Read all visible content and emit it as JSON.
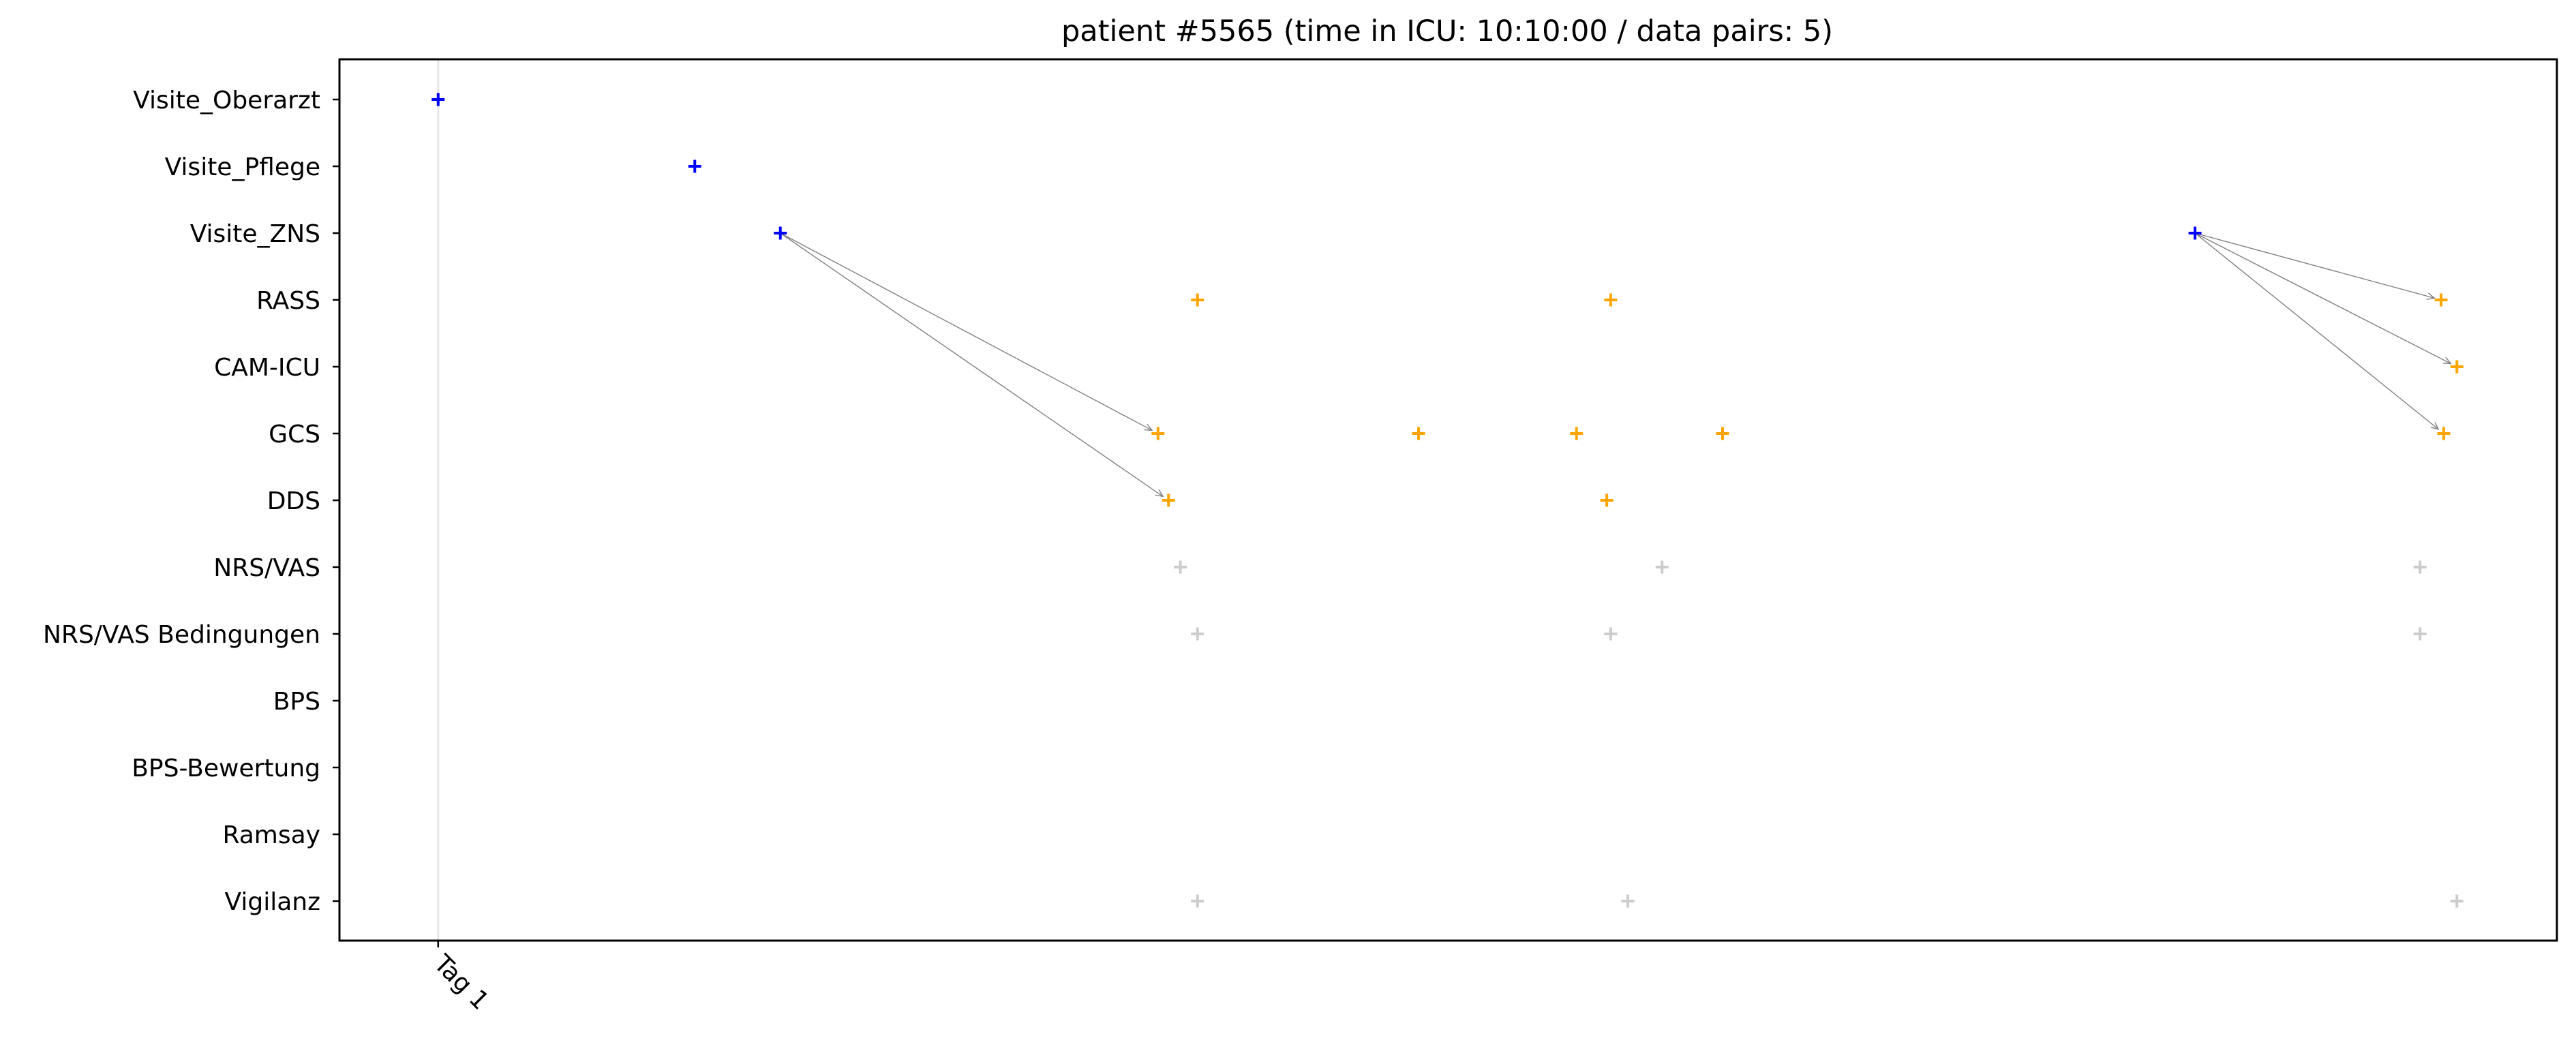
{
  "chart_data": {
    "type": "scatter",
    "title": "patient #5565 (time in ICU: 10:10:00 / data pairs: 5)",
    "xlabel": "",
    "ylabel": "",
    "grid": false,
    "x_unit": "hours",
    "xlim": [
      -0.75,
      16.1
    ],
    "x_ticks": [
      {
        "value": 0,
        "label": "Tag 1"
      }
    ],
    "vertical_lines": [
      {
        "x": 0,
        "color": "#e6e6e6"
      }
    ],
    "categories": [
      "Visite_Oberarzt",
      "Visite_Pflege",
      "Visite_ZNS",
      "RASS",
      "CAM-ICU",
      "GCS",
      "DDS",
      "NRS/VAS",
      "NRS/VAS Bedingungen",
      "BPS",
      "BPS-Bewertung",
      "Ramsay",
      "Vigilanz"
    ],
    "colors": {
      "visit": "#0000ff",
      "assessment": "#ffa500",
      "unused": "#cccccc",
      "arrow": "#808080"
    },
    "series": [
      {
        "group": "visit",
        "points": [
          {
            "x": 0.0,
            "y": "Visite_Oberarzt"
          },
          {
            "x": 1.95,
            "y": "Visite_Pflege"
          },
          {
            "x": 2.6,
            "y": "Visite_ZNS"
          },
          {
            "x": 13.35,
            "y": "Visite_ZNS"
          }
        ]
      },
      {
        "group": "assessment",
        "points": [
          {
            "x": 5.77,
            "y": "RASS"
          },
          {
            "x": 8.91,
            "y": "RASS"
          },
          {
            "x": 15.22,
            "y": "RASS"
          },
          {
            "x": 15.34,
            "y": "CAM-ICU"
          },
          {
            "x": 5.47,
            "y": "GCS"
          },
          {
            "x": 7.45,
            "y": "GCS"
          },
          {
            "x": 8.65,
            "y": "GCS"
          },
          {
            "x": 9.76,
            "y": "GCS"
          },
          {
            "x": 15.24,
            "y": "GCS"
          },
          {
            "x": 5.55,
            "y": "DDS"
          },
          {
            "x": 8.88,
            "y": "DDS"
          }
        ]
      },
      {
        "group": "unused",
        "points": [
          {
            "x": 5.64,
            "y": "NRS/VAS"
          },
          {
            "x": 9.3,
            "y": "NRS/VAS"
          },
          {
            "x": 15.06,
            "y": "NRS/VAS"
          },
          {
            "x": 5.77,
            "y": "NRS/VAS Bedingungen"
          },
          {
            "x": 8.91,
            "y": "NRS/VAS Bedingungen"
          },
          {
            "x": 15.06,
            "y": "NRS/VAS Bedingungen"
          },
          {
            "x": 5.77,
            "y": "Vigilanz"
          },
          {
            "x": 9.04,
            "y": "Vigilanz"
          },
          {
            "x": 15.34,
            "y": "Vigilanz"
          }
        ]
      }
    ],
    "pairs": [
      {
        "from": {
          "x": 2.6,
          "y": "Visite_ZNS"
        },
        "to": {
          "x": 5.47,
          "y": "GCS"
        }
      },
      {
        "from": {
          "x": 2.6,
          "y": "Visite_ZNS"
        },
        "to": {
          "x": 5.55,
          "y": "DDS"
        }
      },
      {
        "from": {
          "x": 13.35,
          "y": "Visite_ZNS"
        },
        "to": {
          "x": 15.22,
          "y": "RASS"
        }
      },
      {
        "from": {
          "x": 13.35,
          "y": "Visite_ZNS"
        },
        "to": {
          "x": 15.34,
          "y": "CAM-ICU"
        }
      },
      {
        "from": {
          "x": 13.35,
          "y": "Visite_ZNS"
        },
        "to": {
          "x": 15.24,
          "y": "GCS"
        }
      }
    ]
  }
}
